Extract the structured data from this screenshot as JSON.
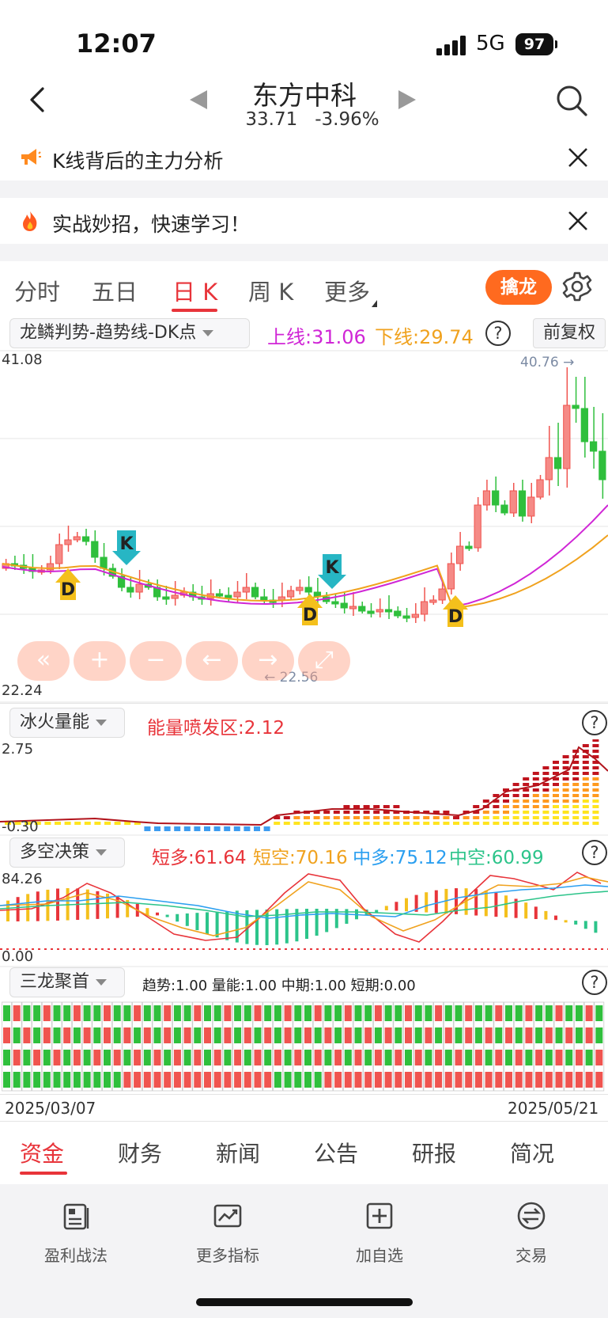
{
  "status": {
    "time": "12:07",
    "network": "5G",
    "battery": "97"
  },
  "header": {
    "stock_name": "东方中科",
    "price": "33.71",
    "change": "-3.96%"
  },
  "banners": [
    {
      "text": "K线背后的主力分析",
      "icon": "megaphone-icon"
    },
    {
      "text": "实战妙招，快速学习！",
      "icon": "fire-icon"
    }
  ],
  "tabs": [
    "分时",
    "五日",
    "日 K",
    "周 K",
    "更多"
  ],
  "active_tab": "日 K",
  "qinlong_label": "擒龙",
  "indicator": {
    "name": "龙鳞判势-趋势线-DK点",
    "upper": "上线:31.06",
    "lower": "下线:29.74",
    "adjust": "前复权"
  },
  "main_chart": {
    "y_max": "41.08",
    "y_min": "22.24",
    "high_marker": "40.76",
    "low_marker": "22.56",
    "signals": [
      "D",
      "K",
      "D",
      "K",
      "D"
    ]
  },
  "panels": [
    {
      "name": "冰火量能",
      "value": "能量喷发区:2.12",
      "y_max": "2.75",
      "y_min": "-0.30"
    },
    {
      "name": "多空决策",
      "values": [
        "短多:61.64",
        "短空:70.16",
        "中多:75.12",
        "中空:60.99"
      ],
      "y_max": "84.26",
      "y_min": "0.00"
    },
    {
      "name": "三龙聚首",
      "value": "趋势:1.00 量能:1.00 中期:1.00 短期:0.00"
    }
  ],
  "dates": {
    "start": "2025/03/07",
    "end": "2025/05/21"
  },
  "bottom_tabs": [
    "资金",
    "财务",
    "新闻",
    "公告",
    "研报",
    "简况"
  ],
  "toolbar": [
    {
      "label": "盈利战法",
      "icon": "article-icon"
    },
    {
      "label": "更多指标",
      "icon": "chart-icon"
    },
    {
      "label": "加自选",
      "icon": "add-icon"
    },
    {
      "label": "交易",
      "icon": "exchange-icon"
    }
  ],
  "colors": {
    "up": "#f0544f",
    "down": "#2fbf3c",
    "accent": "#e8343a",
    "upper_line": "#d026d6",
    "lower_line": "#f0a21e"
  }
}
